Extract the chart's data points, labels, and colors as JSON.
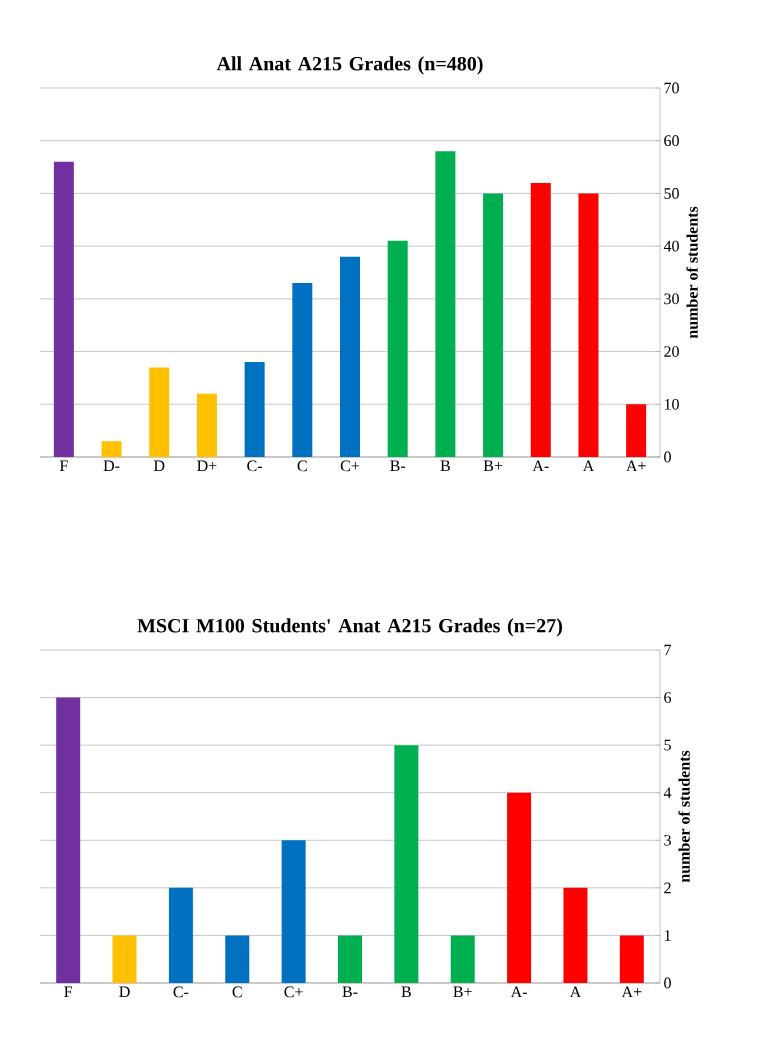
{
  "chart_data": [
    {
      "type": "bar",
      "title": "All Anat A215 Grades (n=480)",
      "ylabel": "number of students",
      "grid": "y",
      "categories": [
        "F",
        "D-",
        "D",
        "D+",
        "C-",
        "C",
        "C+",
        "B-",
        "B",
        "B+",
        "A-",
        "A",
        "A+"
      ],
      "values": [
        56,
        3,
        17,
        12,
        18,
        33,
        38,
        41,
        58,
        50,
        52,
        50,
        10
      ],
      "colors": [
        "#7030a0",
        "#ffc000",
        "#ffc000",
        "#ffc000",
        "#0070c0",
        "#0070c0",
        "#0070c0",
        "#00b050",
        "#00b050",
        "#00b050",
        "#ff0000",
        "#ff0000",
        "#ff0000"
      ],
      "ylim": [
        0,
        70
      ],
      "yticks": [
        0,
        10,
        20,
        30,
        40,
        50,
        60,
        70
      ]
    },
    {
      "type": "bar",
      "title": "MSCI M100 Students' Anat A215 Grades (n=27)",
      "ylabel": "number of students",
      "grid": "y",
      "categories": [
        "F",
        "D",
        "C-",
        "C",
        "C+",
        "B-",
        "B",
        "B+",
        "A-",
        "A",
        "A+"
      ],
      "values": [
        6,
        1,
        2,
        1,
        3,
        1,
        5,
        1,
        4,
        2,
        1
      ],
      "colors": [
        "#7030a0",
        "#ffc000",
        "#0070c0",
        "#0070c0",
        "#0070c0",
        "#00b050",
        "#00b050",
        "#00b050",
        "#ff0000",
        "#ff0000",
        "#ff0000"
      ],
      "ylim": [
        0,
        7
      ],
      "yticks": [
        0,
        1,
        2,
        3,
        4,
        5,
        6,
        7
      ]
    }
  ]
}
